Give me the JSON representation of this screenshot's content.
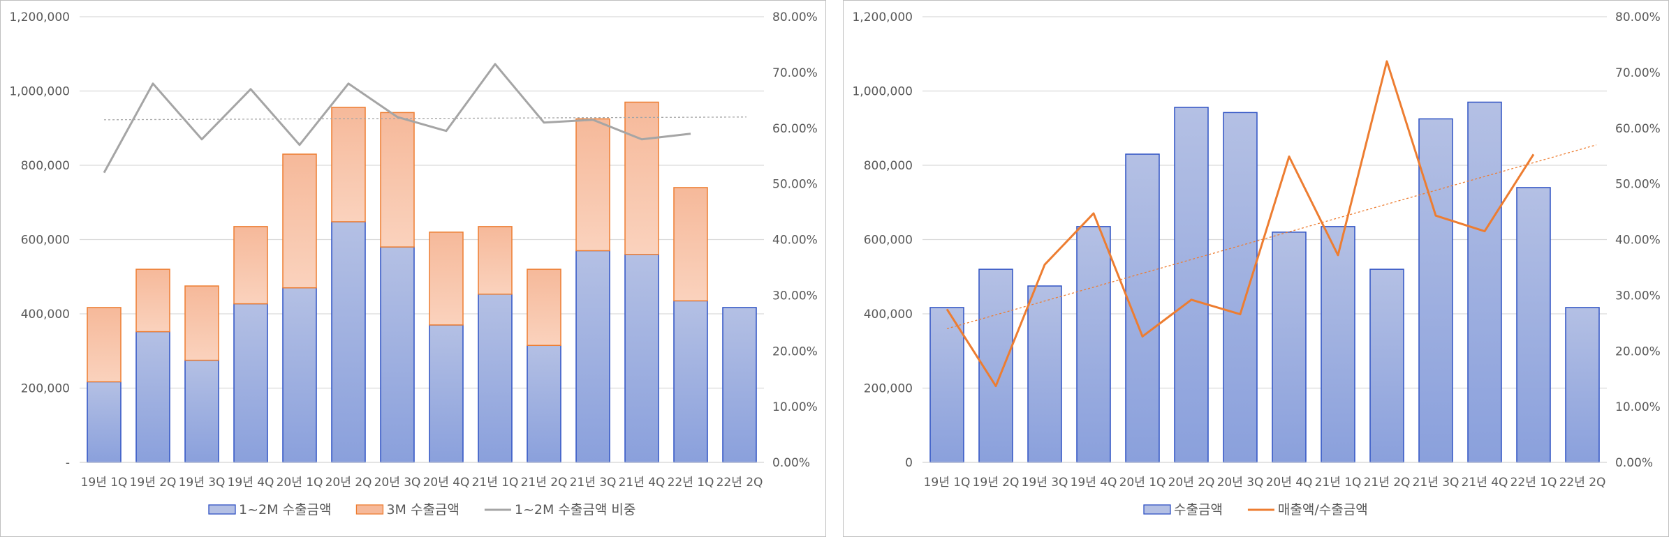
{
  "colors": {
    "bar_blue_top": "#b4c0e4",
    "bar_blue_bottom": "#8aa0dc",
    "bar_blue_stroke": "#2f52c4",
    "bar_orange_top": "#f6b99a",
    "bar_orange_bottom": "#fad2bd",
    "bar_orange_stroke": "#ed7d31",
    "line_gray": "#a5a5a5",
    "line_orange": "#ed7d31",
    "grid": "#d9d9d9"
  },
  "chart_data": [
    {
      "type": "bar",
      "stacked": true,
      "categories": [
        "19년 1Q",
        "19년 2Q",
        "19년 3Q",
        "19년 4Q",
        "20년 1Q",
        "20년 2Q",
        "20년 3Q",
        "20년 4Q",
        "21년 1Q",
        "21년 2Q",
        "21년 3Q",
        "21년 4Q",
        "22년 1Q",
        "22년 2Q"
      ],
      "series": [
        {
          "name": "1~2M 수출금액",
          "kind": "bar",
          "axis": "left",
          "values": [
            217000,
            352000,
            275000,
            427000,
            470000,
            648000,
            580000,
            370000,
            453000,
            315000,
            570000,
            560000,
            435000,
            417000
          ]
        },
        {
          "name": "3M 수출금액",
          "kind": "bar",
          "axis": "left",
          "values": [
            200000,
            168000,
            200000,
            208000,
            360000,
            308000,
            362000,
            250000,
            182000,
            205000,
            355000,
            410000,
            305000,
            null
          ]
        },
        {
          "name": "1~2M 수출금액 비중",
          "kind": "line",
          "axis": "right",
          "values": [
            0.52,
            0.68,
            0.58,
            0.67,
            0.57,
            0.68,
            0.62,
            0.595,
            0.715,
            0.61,
            0.615,
            0.58,
            0.59,
            null
          ],
          "trendline": [
            0.615,
            0.62
          ]
        }
      ],
      "left_axis": {
        "ylim": [
          0,
          1200000
        ],
        "tick_labels": [
          "-",
          "200,000",
          "400,000",
          "600,000",
          "800,000",
          "1,000,000",
          "1,200,000"
        ]
      },
      "right_axis": {
        "ylim": [
          0,
          0.8
        ],
        "tick_labels": [
          "0.00%",
          "10.00%",
          "20.00%",
          "30.00%",
          "40.00%",
          "50.00%",
          "60.00%",
          "70.00%",
          "80.00%"
        ]
      },
      "legend_position": "bottom",
      "grid": true
    },
    {
      "type": "bar",
      "stacked": false,
      "categories": [
        "19년 1Q",
        "19년 2Q",
        "19년 3Q",
        "19년 4Q",
        "20년 1Q",
        "20년 2Q",
        "20년 3Q",
        "20년 4Q",
        "21년 1Q",
        "21년 2Q",
        "21년 3Q",
        "21년 4Q",
        "22년 1Q",
        "22년 2Q"
      ],
      "series": [
        {
          "name": "수출금액",
          "kind": "bar",
          "axis": "left",
          "values": [
            417000,
            520000,
            475000,
            635000,
            830000,
            956000,
            942000,
            620000,
            635000,
            520000,
            925000,
            970000,
            740000,
            417000
          ]
        },
        {
          "name": "매출액/수출금액",
          "kind": "line",
          "axis": "right",
          "values": [
            0.275,
            0.137,
            0.355,
            0.447,
            0.226,
            0.292,
            0.266,
            0.549,
            0.372,
            0.72,
            0.443,
            0.415,
            0.553,
            null
          ],
          "trendline": [
            0.24,
            0.57
          ]
        }
      ],
      "left_axis": {
        "ylim": [
          0,
          1200000
        ],
        "tick_labels": [
          "0",
          "200,000",
          "400,000",
          "600,000",
          "800,000",
          "1,000,000",
          "1,200,000"
        ]
      },
      "right_axis": {
        "ylim": [
          0,
          0.8
        ],
        "tick_labels": [
          "0.00%",
          "10.00%",
          "20.00%",
          "30.00%",
          "40.00%",
          "50.00%",
          "60.00%",
          "70.00%",
          "80.00%"
        ]
      },
      "legend_position": "bottom",
      "grid": true
    }
  ]
}
